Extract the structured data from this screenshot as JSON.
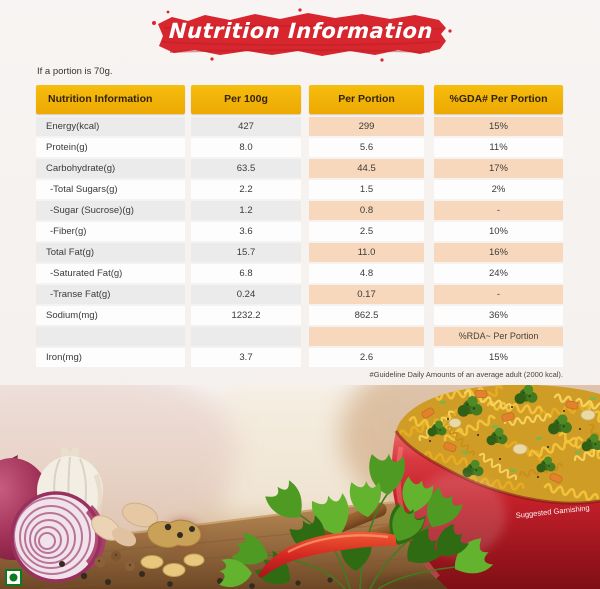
{
  "banner": {
    "title": "Nutrition Information"
  },
  "portion_note": "If a portion is 70g.",
  "table": {
    "headers": [
      "Nutrition Information",
      "Per 100g",
      "Per Portion",
      "%GDA# Per Portion"
    ],
    "rows": [
      {
        "label": "Energy(kcal)",
        "per_100g": "427",
        "per_portion": "299",
        "gda": "15%"
      },
      {
        "label": "Protein(g)",
        "per_100g": "8.0",
        "per_portion": "5.6",
        "gda": "11%"
      },
      {
        "label": "Carbohydrate(g)",
        "per_100g": "63.5",
        "per_portion": "44.5",
        "gda": "17%"
      },
      {
        "label": "-Total Sugars(g)",
        "per_100g": "2.2",
        "per_portion": "1.5",
        "gda": "2%"
      },
      {
        "label": "-Sugar (Sucrose)(g)",
        "per_100g": "1.2",
        "per_portion": "0.8",
        "gda": "-"
      },
      {
        "label": "-Fiber(g)",
        "per_100g": "3.6",
        "per_portion": "2.5",
        "gda": "10%"
      },
      {
        "label": "Total Fat(g)",
        "per_100g": "15.7",
        "per_portion": "11.0",
        "gda": "16%"
      },
      {
        "label": "-Saturated Fat(g)",
        "per_100g": "6.8",
        "per_portion": "4.8",
        "gda": "24%"
      },
      {
        "label": "-Transe Fat(g)",
        "per_100g": "0.24",
        "per_portion": "0.17",
        "gda": "-"
      },
      {
        "label": "Sodium(mg)",
        "per_100g": "1232.2",
        "per_portion": "862.5",
        "gda": "36%"
      },
      {
        "label": "",
        "per_100g": "",
        "per_portion": "",
        "gda": "%RDA~ Per Portion",
        "special": true
      },
      {
        "label": "Iron(mg)",
        "per_100g": "3.7",
        "per_portion": "2.6",
        "gda": "15%"
      }
    ],
    "footnote": "#Guideline Daily Amounts of an average adult (2000 kcal)."
  },
  "photo": {
    "garnish_label": "Suggested Garnishing",
    "veg_symbol": "vegetarian-mark"
  },
  "colors": {
    "banner_red": "#d8262e",
    "header_yellow": "#f4b70a",
    "row_shade_gray": "#ebebeb",
    "row_shade_peach": "#f8d8bc",
    "bowl_red": "#c9242c",
    "noodle_yellow": "#edbb2f",
    "veg_mark_green": "#0e7a1f",
    "wood_brown": "#a97c4e"
  }
}
